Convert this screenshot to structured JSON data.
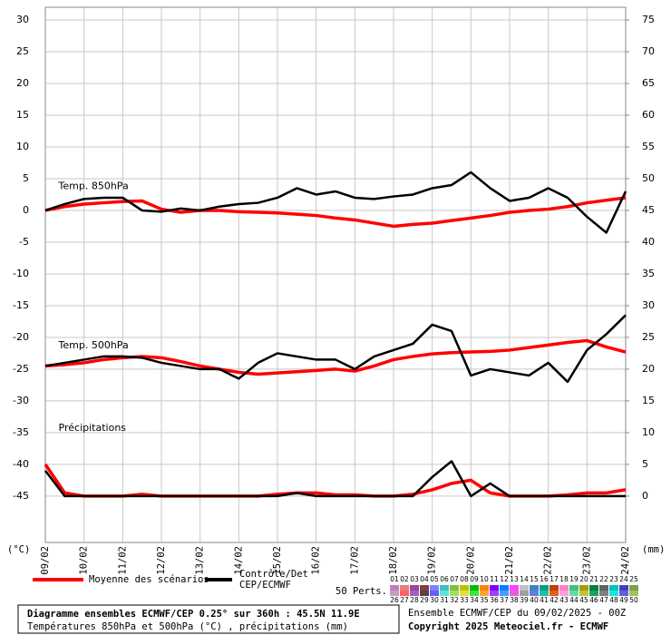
{
  "chart_data": {
    "type": "line",
    "annotations": [
      {
        "text": "Temp. 850hPa",
        "x": 0.2,
        "y": 3.8
      },
      {
        "text": "Temp. 500hPa",
        "x": 0.2,
        "y": -21.3
      },
      {
        "text": "Précipitations",
        "x": 0.2,
        "y": -34.3
      }
    ],
    "ylabel": "(°C)",
    "y2label": "(mm)",
    "x": [
      0,
      0.5,
      1,
      1.5,
      2,
      2.5,
      3,
      3.5,
      4,
      4.5,
      5,
      5.5,
      6,
      6.5,
      7,
      7.5,
      8,
      8.5,
      9,
      9.5,
      10,
      10.5,
      11,
      11.5,
      12,
      12.5,
      13,
      13.5,
      14,
      14.5,
      15
    ],
    "xlim": [
      0,
      15
    ],
    "xticks": [
      {
        "value": 0,
        "label": "09/02"
      },
      {
        "value": 1,
        "label": "10/02"
      },
      {
        "value": 2,
        "label": "11/02"
      },
      {
        "value": 3,
        "label": "12/02"
      },
      {
        "value": 4,
        "label": "13/02"
      },
      {
        "value": 5,
        "label": "14/02"
      },
      {
        "value": 6,
        "label": "15/02"
      },
      {
        "value": 7,
        "label": "16/02"
      },
      {
        "value": 8,
        "label": "17/02"
      },
      {
        "value": 9,
        "label": "18/02"
      },
      {
        "value": 10,
        "label": "19/02"
      },
      {
        "value": 11,
        "label": "20/02"
      },
      {
        "value": 12,
        "label": "21/02"
      },
      {
        "value": 13,
        "label": "22/02"
      },
      {
        "value": 14,
        "label": "23/02"
      },
      {
        "value": 15,
        "label": "24/02"
      }
    ],
    "ylim": [
      -52.3,
      32
    ],
    "yticks": [
      -45,
      -40,
      -35,
      -30,
      -25,
      -20,
      -15,
      -10,
      -5,
      0,
      5,
      10,
      15,
      20,
      25,
      30
    ],
    "y2lim": [
      -7.3,
      77
    ],
    "y2ticks": [
      0,
      5,
      10,
      15,
      20,
      25,
      30,
      35,
      40,
      45,
      50,
      55,
      60,
      65,
      70,
      75
    ],
    "grid": true,
    "series": [
      {
        "name": "Moyenne des scénarios",
        "color": "#ff0000",
        "values": [
          0,
          0.6,
          1,
          1.2,
          1.4,
          1.5,
          0.2,
          -0.3,
          0,
          0,
          -0.2,
          -0.3,
          -0.4,
          -0.6,
          -0.8,
          -1.2,
          -1.5,
          -2,
          -2.5,
          -2.2,
          -2,
          -1.6,
          -1.2,
          -0.8,
          -0.3,
          0,
          0.2,
          0.6,
          1.2,
          1.6,
          2
        ]
      },
      {
        "name": "Contrôle/Det CEP/ECMWF",
        "color": "#000000",
        "values": [
          0,
          1,
          1.8,
          2,
          2,
          0,
          -0.2,
          0.3,
          0,
          0.6,
          1,
          1.2,
          2,
          3.5,
          2.5,
          3,
          2,
          1.8,
          2.2,
          2.5,
          3.5,
          4,
          6,
          3.5,
          1.5,
          2,
          3.5,
          2,
          -1,
          -3.5,
          3
        ]
      },
      {
        "color": "#ff0000",
        "values": [
          -24.5,
          -24.3,
          -24,
          -23.5,
          -23.2,
          -23,
          -23.2,
          -23.8,
          -24.5,
          -25,
          -25.5,
          -25.8,
          -25.6,
          -25.4,
          -25.2,
          -25,
          -25.3,
          -24.5,
          -23.5,
          -23,
          -22.6,
          -22.4,
          -22.3,
          -22.2,
          -22,
          -21.6,
          -21.2,
          -20.8,
          -20.5,
          -21.5,
          -22.3
        ]
      },
      {
        "color": "#000000",
        "values": [
          -24.5,
          -24,
          -23.5,
          -23,
          -23,
          -23.2,
          -24,
          -24.5,
          -25,
          -25,
          -26.5,
          -24,
          -22.5,
          -23,
          -23.5,
          -23.5,
          -25,
          -23,
          -22,
          -21,
          -18,
          -19,
          -26,
          -25,
          -25.5,
          -26,
          -24,
          -27,
          -22,
          -19.5,
          -16.5
        ]
      },
      {
        "color": "#ff0000",
        "axis": "y2",
        "values": [
          5,
          0.5,
          0,
          0,
          0,
          0.3,
          0,
          0,
          0,
          0,
          0,
          0,
          0.3,
          0.5,
          0.5,
          0.2,
          0.2,
          0,
          0,
          0.3,
          1,
          2,
          2.5,
          0.5,
          0,
          0,
          0,
          0.2,
          0.5,
          0.5,
          1
        ]
      },
      {
        "color": "#000000",
        "axis": "y2",
        "values": [
          4,
          0,
          0,
          0,
          0,
          0,
          0,
          0,
          0,
          0,
          0,
          0,
          0,
          0.5,
          0,
          0,
          0,
          0,
          0,
          0,
          3,
          5.5,
          0,
          2,
          0,
          0,
          0,
          0,
          0,
          0,
          0
        ]
      }
    ],
    "members_label": "50 Perts.",
    "members": [
      {
        "label": "01",
        "color": "#c080c0"
      },
      {
        "label": "02",
        "color": "#e08080"
      },
      {
        "label": "03",
        "color": "#a040a0"
      },
      {
        "label": "04",
        "color": "#804040"
      },
      {
        "label": "05",
        "color": "#8080ff"
      },
      {
        "label": "06",
        "color": "#40c0c0"
      },
      {
        "label": "07",
        "color": "#80c040"
      },
      {
        "label": "08",
        "color": "#c0c000"
      },
      {
        "label": "09",
        "color": "#00c000"
      },
      {
        "label": "10",
        "color": "#ff8000"
      },
      {
        "label": "11",
        "color": "#8000ff"
      },
      {
        "label": "12",
        "color": "#0080ff"
      },
      {
        "label": "13",
        "color": "#ff40ff"
      },
      {
        "label": "14",
        "color": "#c0c0c0"
      },
      {
        "label": "15",
        "color": "#4080c0"
      },
      {
        "label": "16",
        "color": "#00a080"
      },
      {
        "label": "17",
        "color": "#c04000"
      },
      {
        "label": "18",
        "color": "#ff80c0"
      },
      {
        "label": "19",
        "color": "#40c080"
      },
      {
        "label": "20",
        "color": "#a0a000"
      },
      {
        "label": "21",
        "color": "#008040"
      },
      {
        "label": "22",
        "color": "#606060"
      },
      {
        "label": "23",
        "color": "#00c0c0"
      },
      {
        "label": "24",
        "color": "#4040c0"
      },
      {
        "label": "25",
        "color": "#80a040"
      },
      {
        "label": "26",
        "color": "#c0a0c0"
      },
      {
        "label": "27",
        "color": "#ff6060"
      },
      {
        "label": "28",
        "color": "#a060c0"
      },
      {
        "label": "29",
        "color": "#604040"
      },
      {
        "label": "30",
        "color": "#6060ff"
      },
      {
        "label": "31",
        "color": "#60e0e0"
      },
      {
        "label": "32",
        "color": "#a0e060"
      },
      {
        "label": "33",
        "color": "#e0e040"
      },
      {
        "label": "34",
        "color": "#40e040"
      },
      {
        "label": "35",
        "color": "#ffa040"
      },
      {
        "label": "36",
        "color": "#a040ff"
      },
      {
        "label": "37",
        "color": "#40a0ff"
      },
      {
        "label": "38",
        "color": "#e060e0"
      },
      {
        "label": "39",
        "color": "#a0a0a0"
      },
      {
        "label": "40",
        "color": "#6080e0"
      },
      {
        "label": "41",
        "color": "#20c0a0"
      },
      {
        "label": "42",
        "color": "#e06020"
      },
      {
        "label": "43",
        "color": "#ffa0e0"
      },
      {
        "label": "44",
        "color": "#60e0a0"
      },
      {
        "label": "45",
        "color": "#c0c040"
      },
      {
        "label": "46",
        "color": "#20a060"
      },
      {
        "label": "47",
        "color": "#808080"
      },
      {
        "label": "48",
        "color": "#20e0e0"
      },
      {
        "label": "49",
        "color": "#6060e0"
      },
      {
        "label": "50",
        "color": "#a0c060"
      }
    ],
    "footer": {
      "title": "Diagramme ensembles ECMWF/CEP 0.25° sur 360h : 45.5N 11.9E",
      "subtitle": "Températures 850hPa et 500hPa (°C) , précipitations (mm)",
      "run": "Ensemble ECMWF/CEP du 09/02/2025 - 00Z",
      "copyright": "Copyright 2025 Meteociel.fr - ECMWF"
    }
  }
}
